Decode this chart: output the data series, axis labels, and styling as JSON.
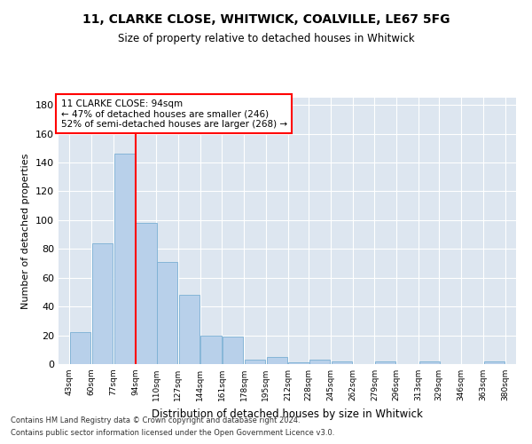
{
  "title_line1": "11, CLARKE CLOSE, WHITWICK, COALVILLE, LE67 5FG",
  "title_line2": "Size of property relative to detached houses in Whitwick",
  "xlabel": "Distribution of detached houses by size in Whitwick",
  "ylabel": "Number of detached properties",
  "bar_color": "#b8d0ea",
  "bar_edge_color": "#7aafd4",
  "background_color": "#dde6f0",
  "grid_color": "#ffffff",
  "bins": [
    43,
    60,
    77,
    94,
    110,
    127,
    144,
    161,
    178,
    195,
    212,
    228,
    245,
    262,
    279,
    296,
    313,
    329,
    346,
    363,
    380
  ],
  "values": [
    22,
    84,
    146,
    98,
    71,
    48,
    20,
    19,
    3,
    5,
    1,
    3,
    2,
    0,
    2,
    0,
    2,
    0,
    0,
    2
  ],
  "property_size": 94,
  "property_label": "11 CLARKE CLOSE: 94sqm",
  "annotation_line1": "← 47% of detached houses are smaller (246)",
  "annotation_line2": "52% of semi-detached houses are larger (268) →",
  "ylim": [
    0,
    185
  ],
  "yticks": [
    0,
    20,
    40,
    60,
    80,
    100,
    120,
    140,
    160,
    180
  ],
  "footer_line1": "Contains HM Land Registry data © Crown copyright and database right 2024.",
  "footer_line2": "Contains public sector information licensed under the Open Government Licence v3.0."
}
